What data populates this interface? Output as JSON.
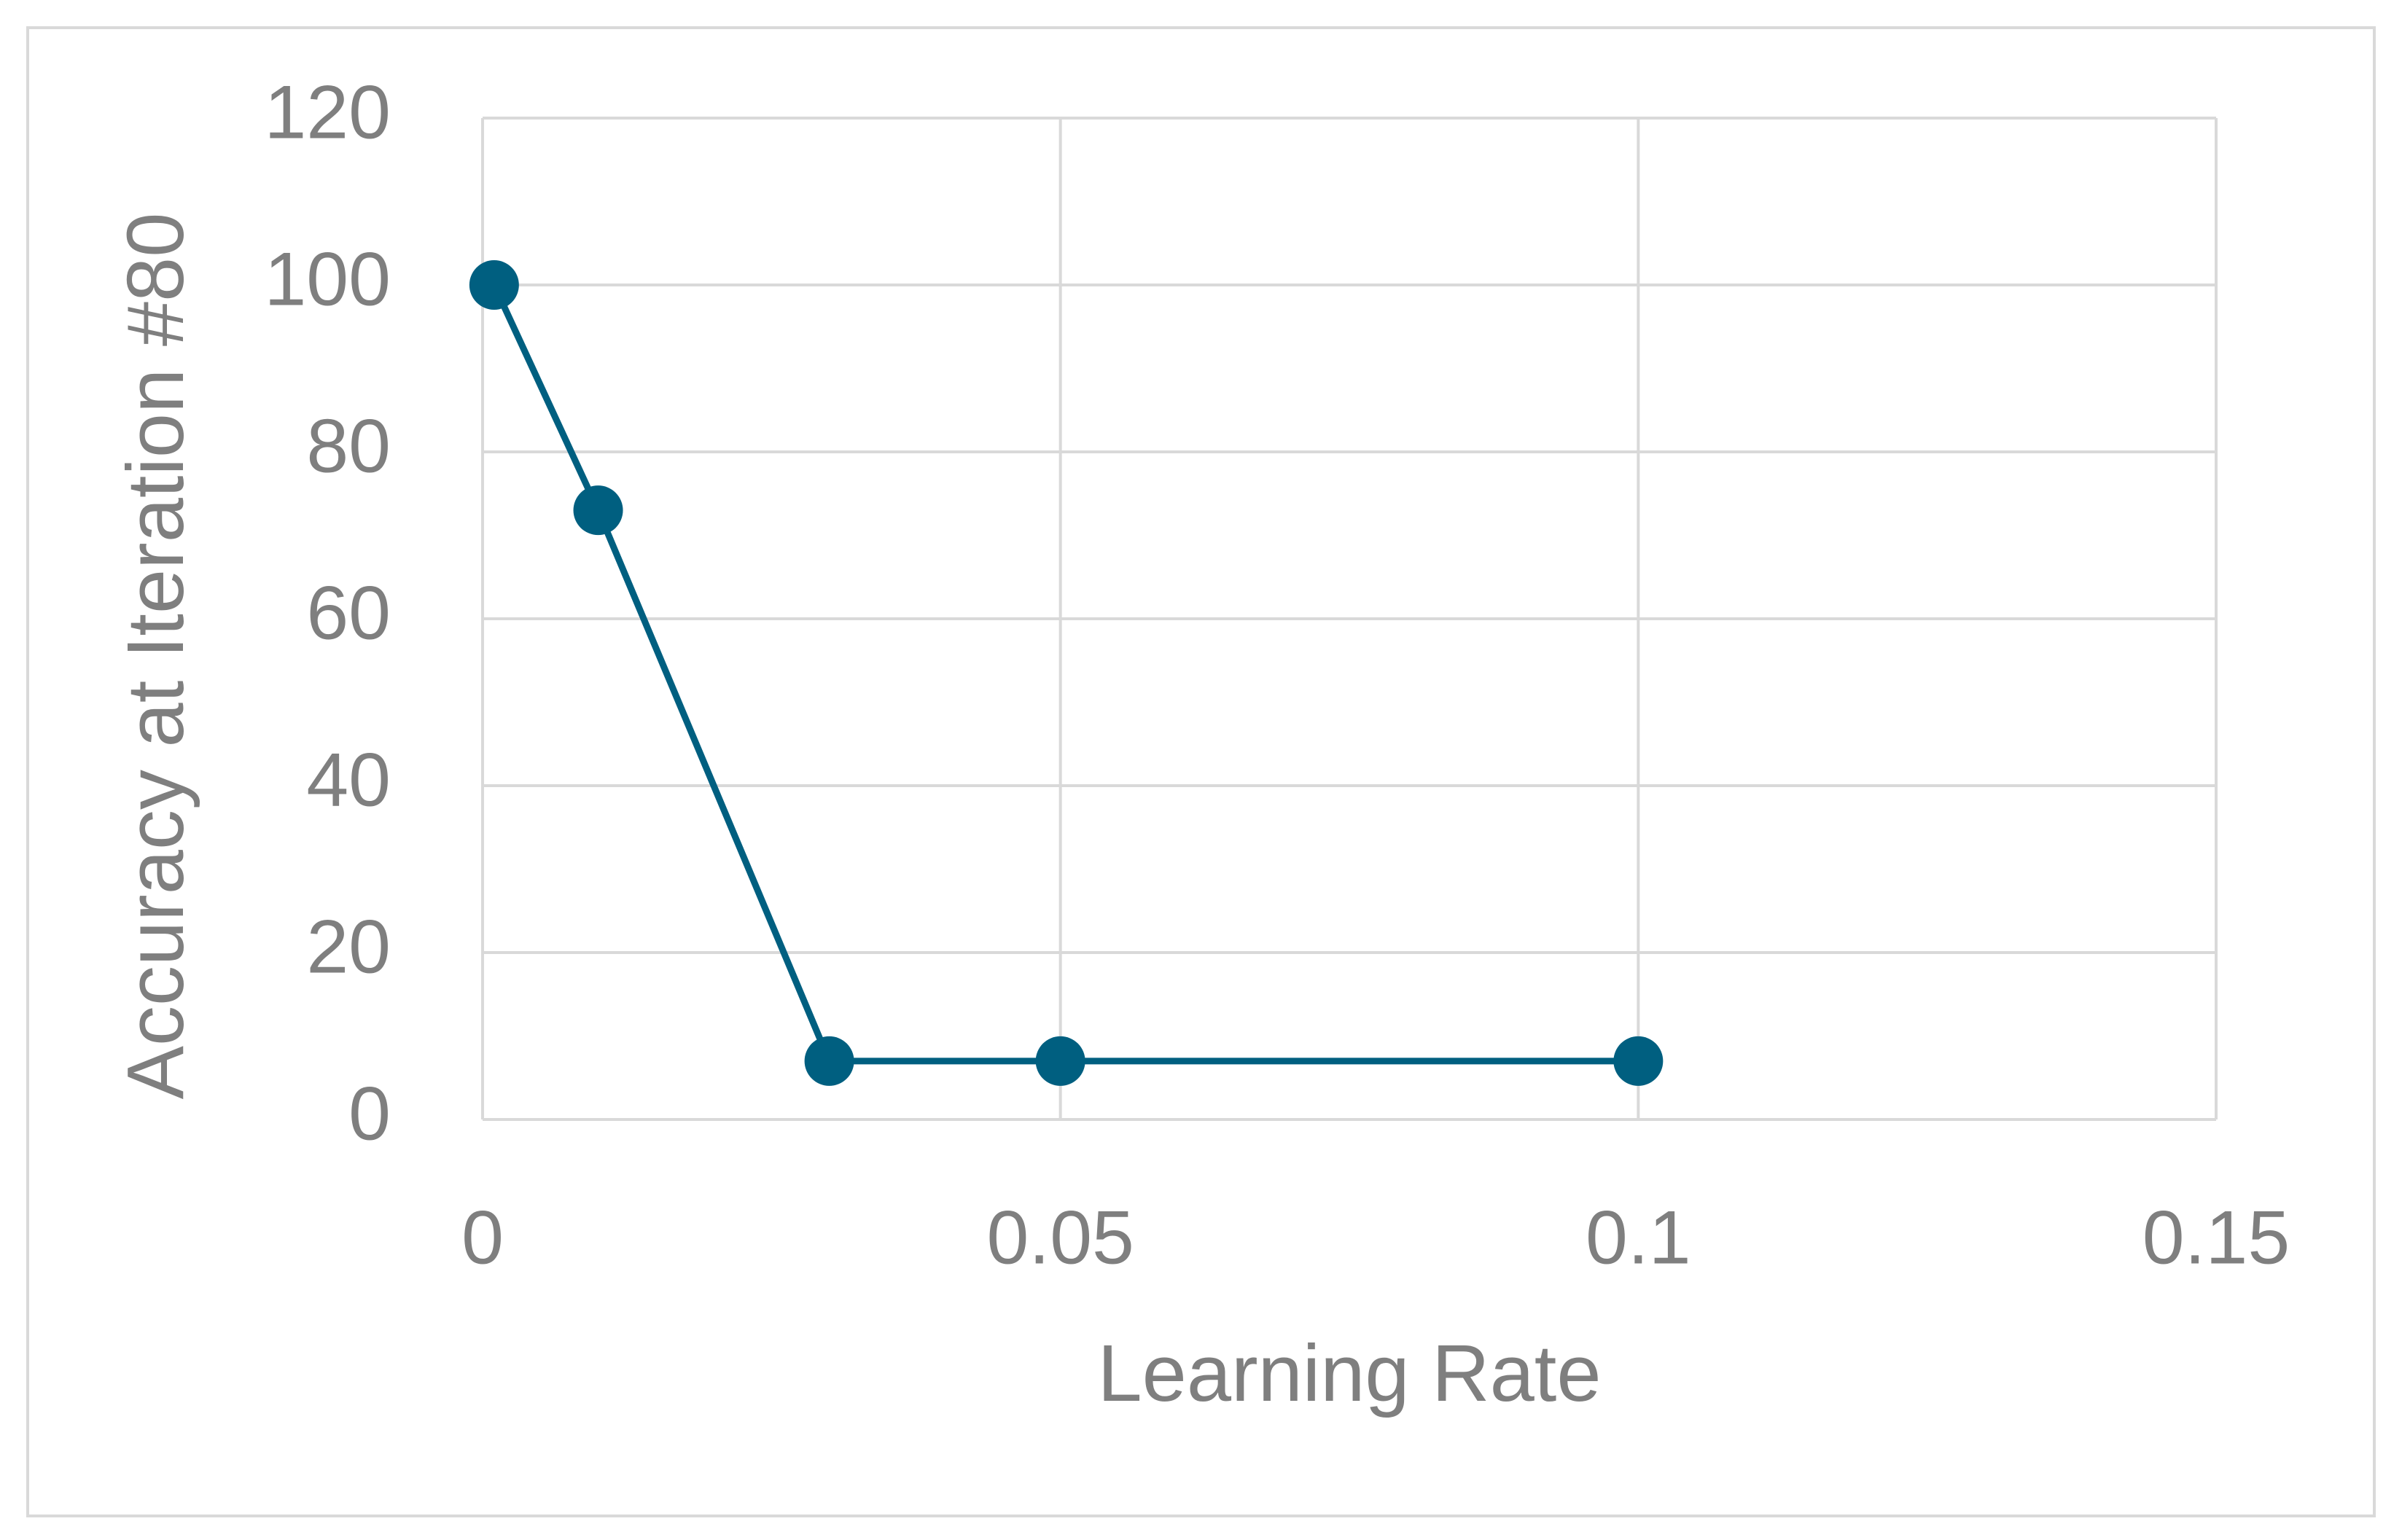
{
  "chart_data": {
    "type": "line",
    "x_label": "Learning Rate",
    "y_label": "Accuracy at Iteration #80",
    "x": [
      0.001,
      0.01,
      0.03,
      0.05,
      0.1
    ],
    "series": [
      {
        "color": "#005f80",
        "values": [
          100,
          73,
          7,
          7,
          7
        ]
      }
    ],
    "xlim": [
      0,
      0.15
    ],
    "xticks": [
      0,
      0.05,
      0.1,
      0.15
    ],
    "ylim": [
      0,
      120
    ],
    "yticks": [
      0,
      20,
      40,
      60,
      80,
      100,
      120
    ],
    "grid": true
  }
}
